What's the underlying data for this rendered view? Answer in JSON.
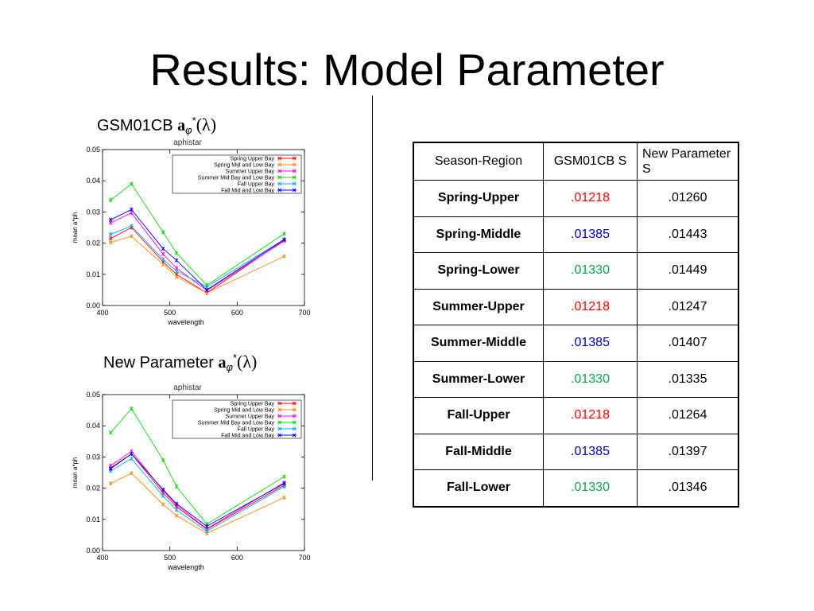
{
  "slide": {
    "title": "Results: Model Parameter"
  },
  "chart_labels": {
    "top": {
      "prefix": "GSM01CB",
      "symbol": "a",
      "subscript": "φ",
      "superscript": "*",
      "arg": "(λ)"
    },
    "bottom": {
      "prefix": "New Parameter",
      "symbol": "a",
      "subscript": "φ",
      "superscript": "*",
      "arg": "(λ)"
    }
  },
  "chart_data": [
    {
      "type": "line",
      "title": "aphistar",
      "xlabel": "wavelength",
      "ylabel": "mean a*ph",
      "xlim": [
        400,
        700
      ],
      "ylim": [
        0,
        0.05
      ],
      "xticks": [
        "400",
        "500",
        "600",
        "700"
      ],
      "yticks": [
        "0.00",
        "0.01",
        "0.02",
        "0.03",
        "0.04",
        "0.05"
      ],
      "legend_position": "top-right",
      "x": [
        412,
        443,
        490,
        510,
        555,
        670
      ],
      "series": [
        {
          "name": "Spring Upper Bay",
          "color": "#ff0000",
          "values": [
            0.0215,
            0.025,
            0.014,
            0.01,
            0.004,
            0.021
          ]
        },
        {
          "name": "Spring Mid and Low Bay",
          "color": "#ff8c00",
          "values": [
            0.0202,
            0.0222,
            0.0132,
            0.0092,
            0.004,
            0.0158
          ]
        },
        {
          "name": "Summer Upper Bay",
          "color": "#ff00ff",
          "values": [
            0.0265,
            0.0297,
            0.0165,
            0.012,
            0.0048,
            0.0207
          ]
        },
        {
          "name": "Summer Mid Bay and Low Bay",
          "color": "#00dd00",
          "values": [
            0.0338,
            0.039,
            0.0235,
            0.0168,
            0.0065,
            0.023
          ]
        },
        {
          "name": "Fall Upper Bay",
          "color": "#00aaff",
          "values": [
            0.0228,
            0.0255,
            0.0148,
            0.011,
            0.006,
            0.0212
          ]
        },
        {
          "name": "Fall Mid and Low Bay",
          "color": "#0000ff",
          "values": [
            0.0275,
            0.0308,
            0.0182,
            0.0145,
            0.005,
            0.0212
          ]
        }
      ]
    },
    {
      "type": "line",
      "title": "aphistar",
      "xlabel": "wavelength",
      "ylabel": "mean a*ph",
      "xlim": [
        400,
        700
      ],
      "ylim": [
        0,
        0.05
      ],
      "xticks": [
        "400",
        "500",
        "600",
        "700"
      ],
      "yticks": [
        "0.00",
        "0.01",
        "0.02",
        "0.03",
        "0.04",
        "0.05"
      ],
      "legend_position": "top-right",
      "x": [
        412,
        443,
        490,
        510,
        555,
        670
      ],
      "series": [
        {
          "name": "Spring Upper Bay",
          "color": "#ff0000",
          "values": [
            0.0265,
            0.031,
            0.0185,
            0.014,
            0.0068,
            0.021
          ]
        },
        {
          "name": "Spring Mid and Low Bay",
          "color": "#ff8c00",
          "values": [
            0.0215,
            0.0248,
            0.0148,
            0.0112,
            0.0055,
            0.017
          ]
        },
        {
          "name": "Summer Upper Bay",
          "color": "#ff00ff",
          "values": [
            0.0272,
            0.0318,
            0.0192,
            0.0146,
            0.007,
            0.0218
          ]
        },
        {
          "name": "Summer Mid Bay and Low Bay",
          "color": "#00dd00",
          "values": [
            0.0378,
            0.0455,
            0.029,
            0.0205,
            0.0085,
            0.0237
          ]
        },
        {
          "name": "Fall Upper Bay",
          "color": "#00aaff",
          "values": [
            0.0255,
            0.0295,
            0.0175,
            0.013,
            0.0062,
            0.0205
          ]
        },
        {
          "name": "Fall Mid and Low Bay",
          "color": "#0000ff",
          "values": [
            0.0262,
            0.031,
            0.0195,
            0.015,
            0.0078,
            0.0215
          ]
        }
      ]
    }
  ],
  "table": {
    "headers": [
      "Season-Region",
      "GSM01CB S",
      "New Parameter S"
    ],
    "colors": {
      "red": "#ff0000",
      "blue": "#0000cc",
      "green": "#00a651"
    },
    "rows": [
      {
        "region": "Spring-Upper",
        "gsm": ".01218",
        "gsm_color": "red",
        "new": ".01260"
      },
      {
        "region": "Spring-Middle",
        "gsm": ".01385",
        "gsm_color": "blue",
        "new": ".01443"
      },
      {
        "region": "Spring-Lower",
        "gsm": ".01330",
        "gsm_color": "green",
        "new": ".01449"
      },
      {
        "region": "Summer-Upper",
        "gsm": ".01218",
        "gsm_color": "red",
        "new": ".01247"
      },
      {
        "region": "Summer-Middle",
        "gsm": ".01385",
        "gsm_color": "blue",
        "new": ".01407"
      },
      {
        "region": "Summer-Lower",
        "gsm": ".01330",
        "gsm_color": "green",
        "new": ".01335"
      },
      {
        "region": "Fall-Upper",
        "gsm": ".01218",
        "gsm_color": "red",
        "new": ".01264"
      },
      {
        "region": "Fall-Middle",
        "gsm": ".01385",
        "gsm_color": "blue",
        "new": ".01397"
      },
      {
        "region": "Fall-Lower",
        "gsm": ".01330",
        "gsm_color": "green",
        "new": ".01346"
      }
    ]
  }
}
